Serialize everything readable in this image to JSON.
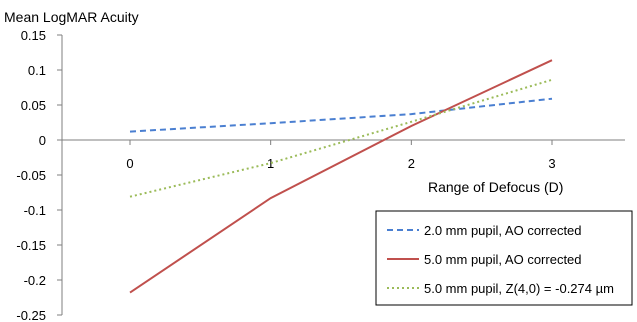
{
  "chart_data": {
    "type": "line",
    "title": "",
    "ylabel": "Mean LogMAR Acuity",
    "xlabel": "Range of Defocus (D)",
    "x": [
      0,
      1,
      2,
      3
    ],
    "xlim": [
      0,
      3
    ],
    "ylim": [
      -0.25,
      0.15
    ],
    "y_ticks": [
      "0.15",
      "0.1",
      "0.05",
      "0",
      "-0.05",
      "-0.1",
      "-0.15",
      "-0.2",
      "-0.25"
    ],
    "x_ticks": [
      "0",
      "1",
      "2",
      "3"
    ],
    "grid": false,
    "legend_position": "bottom-right",
    "series": [
      {
        "name": "2.0 mm pupil, AO corrected",
        "color": "#4a7fd1",
        "style": "dashed",
        "values": [
          0.012,
          0.024,
          0.037,
          0.059
        ]
      },
      {
        "name": "5.0 mm pupil, AO corrected",
        "color": "#c0504d",
        "style": "solid",
        "values": [
          -0.218,
          -0.083,
          0.02,
          0.114
        ]
      },
      {
        "name": "5.0 mm pupil, Z(4,0) = -0.274 µm",
        "color": "#9bbb59",
        "style": "dotted",
        "values": [
          -0.081,
          -0.033,
          0.026,
          0.086
        ]
      }
    ]
  }
}
